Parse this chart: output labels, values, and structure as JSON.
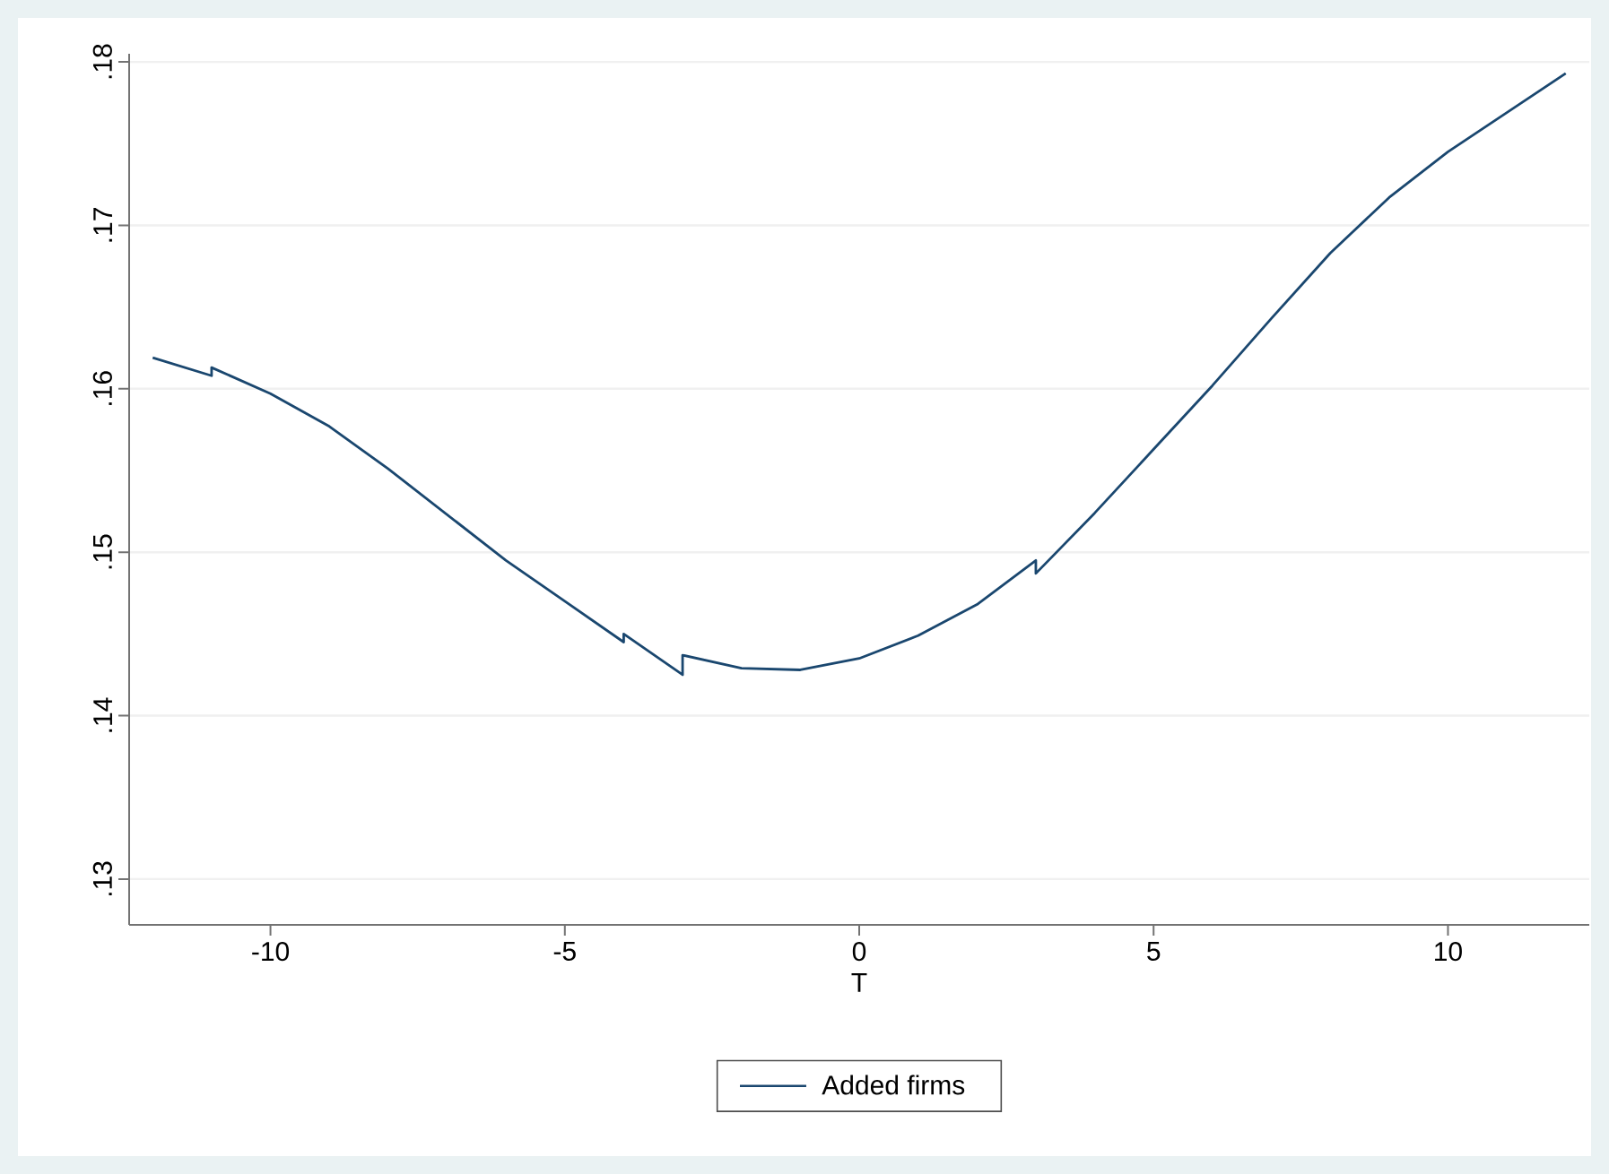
{
  "chart_data": {
    "type": "line",
    "xlabel": "T",
    "x": [
      -12,
      -11,
      -11,
      -10,
      -9,
      -8,
      -7,
      -6,
      -5,
      -4,
      -4,
      -3,
      -3,
      -2,
      -1,
      0,
      1,
      2,
      3,
      3,
      4,
      5,
      6,
      7,
      8,
      9,
      10,
      11,
      12
    ],
    "series": [
      {
        "name": "Added firms",
        "color": "#1a476f",
        "values": [
          0.1619,
          0.1608,
          0.1613,
          0.1597,
          0.1577,
          0.1551,
          0.1523,
          0.1495,
          0.147,
          0.1445,
          0.145,
          0.1425,
          0.1437,
          0.1429,
          0.1428,
          0.1435,
          0.1449,
          0.1468,
          0.1495,
          0.1487,
          0.1524,
          0.1563,
          0.1602,
          0.1643,
          0.1683,
          0.1717,
          0.1745,
          0.1769,
          0.1793
        ]
      }
    ],
    "xlim": [
      -12.4,
      12.4
    ],
    "ylim": [
      0.1272,
      0.1805
    ],
    "xticks": [
      -10,
      -5,
      0,
      5,
      10
    ],
    "yticks": [
      {
        "value": 0.13,
        "label": ".13"
      },
      {
        "value": 0.14,
        "label": ".14"
      },
      {
        "value": 0.15,
        "label": ".15"
      },
      {
        "value": 0.16,
        "label": ".16"
      },
      {
        "value": 0.17,
        "label": ".17"
      },
      {
        "value": 0.18,
        "label": ".18"
      }
    ],
    "grid": "y",
    "legend": "bottom",
    "marker": "none",
    "line_style": "solid"
  }
}
